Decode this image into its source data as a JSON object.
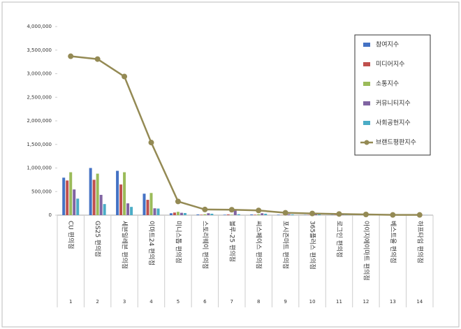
{
  "chart_data": {
    "type": "bar",
    "categories": [
      "CU 편의점",
      "GS25 편의점",
      "세븐일레븐 편의점",
      "이마트24 편의점",
      "미니스톱 편의점",
      "스토리웨이 편의점",
      "블루-25 편의점",
      "씨스페이스 편의점",
      "포시즌마트 편의점",
      "365플러스 편의점",
      "로그인 편의점",
      "아이지에이마트 편의점",
      "베스트올 편의점",
      "하프타임 편의점"
    ],
    "ranks": [
      1,
      2,
      3,
      4,
      5,
      6,
      7,
      8,
      9,
      10,
      11,
      12,
      13,
      14
    ],
    "series": [
      {
        "name": "참여지수",
        "color": "#4472c4",
        "values": [
          795000,
          1000000,
          940000,
          455000,
          40000,
          15000,
          10000,
          15000,
          10000,
          5000,
          5000,
          3000,
          2000,
          2000
        ]
      },
      {
        "name": "미디어지수",
        "color": "#c0504d",
        "values": [
          735000,
          750000,
          650000,
          325000,
          55000,
          10000,
          15000,
          10000,
          5000,
          5000,
          5000,
          3000,
          2000,
          2000
        ]
      },
      {
        "name": "소통지수",
        "color": "#9bbb59",
        "values": [
          910000,
          880000,
          910000,
          470000,
          70000,
          20000,
          10000,
          20000,
          10000,
          10000,
          5000,
          3000,
          2000,
          2000
        ]
      },
      {
        "name": "커뮤니티지수",
        "color": "#8064a2",
        "values": [
          545000,
          430000,
          250000,
          145000,
          50000,
          40000,
          100000,
          40000,
          20000,
          20000,
          10000,
          5000,
          2000,
          2000
        ]
      },
      {
        "name": "사회공헌지수",
        "color": "#4bacc6",
        "values": [
          350000,
          235000,
          175000,
          140000,
          45000,
          30000,
          20000,
          30000,
          15000,
          15000,
          10000,
          5000,
          3000,
          3000
        ]
      },
      {
        "name": "브랜드평판지수",
        "color": "#948a54",
        "type": "line",
        "values": [
          3370000,
          3310000,
          2940000,
          1540000,
          290000,
          120000,
          115000,
          100000,
          50000,
          35000,
          25000,
          15000,
          5000,
          5000
        ]
      }
    ],
    "ylim": [
      0,
      4000000
    ],
    "yticks": [
      0,
      {
        "value": 500000,
        "label": "500,000"
      },
      {
        "value": 1000000,
        "label": "1,000,000"
      },
      {
        "value": 1500000,
        "label": "1,500,000"
      },
      {
        "value": 2000000,
        "label": "2,000,000"
      },
      {
        "value": 2500000,
        "label": "2,500,000"
      },
      {
        "value": 3000000,
        "label": "3,000,000"
      },
      {
        "value": 3500000,
        "label": "3,500,000"
      },
      {
        "value": 4000000,
        "label": "4,000,000"
      }
    ],
    "grid": false,
    "legend": "upper right"
  }
}
